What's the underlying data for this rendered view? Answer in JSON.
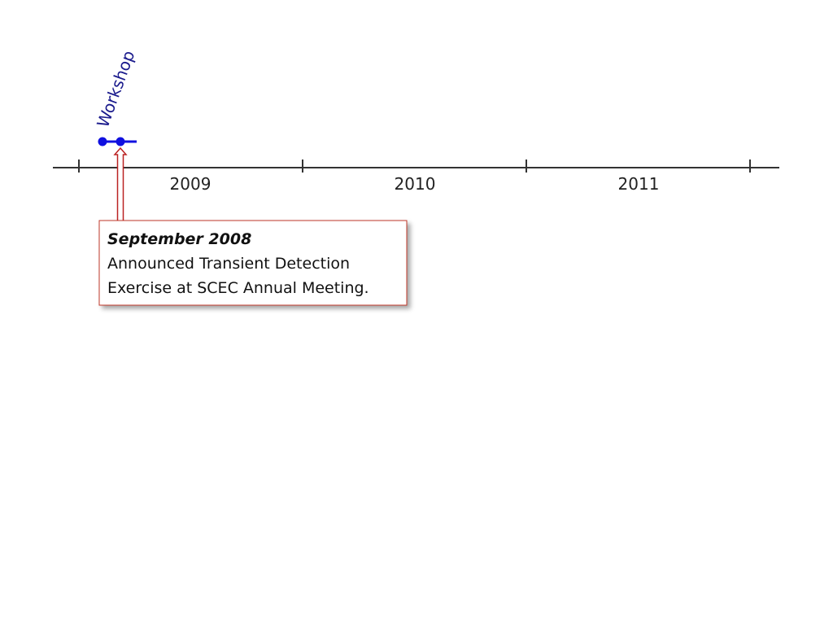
{
  "timeline": {
    "years": [
      "2009",
      "2010",
      "2011"
    ],
    "event": "Workshop"
  },
  "callout": {
    "title": "September 2008",
    "lines": [
      "Announced Transient Detection",
      "Exercise at SCEC Annual Meeting."
    ]
  }
}
